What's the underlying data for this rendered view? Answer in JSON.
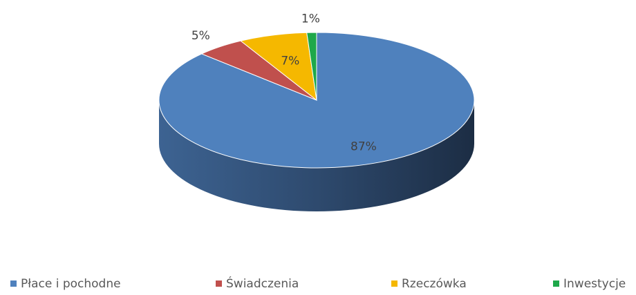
{
  "chart_data": {
    "type": "pie3d",
    "categories": [
      "Płace i pochodne",
      "Świadczenia",
      "Rzeczówka",
      "Inwestycje"
    ],
    "values": [
      87,
      5,
      7,
      1
    ],
    "value_labels": [
      "87%",
      "5%",
      "7%",
      "1%"
    ],
    "colors": [
      "#4f81bd",
      "#c0504d",
      "#f5b800",
      "#1ea84a"
    ],
    "legend": "bottom"
  }
}
